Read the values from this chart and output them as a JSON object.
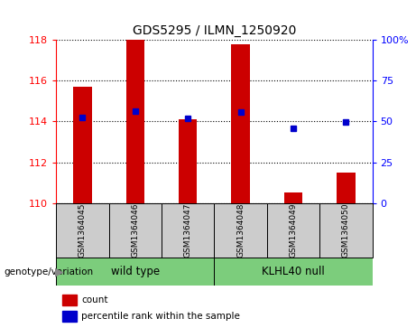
{
  "title": "GDS5295 / ILMN_1250920",
  "samples": [
    "GSM1364045",
    "GSM1364046",
    "GSM1364047",
    "GSM1364048",
    "GSM1364049",
    "GSM1364050"
  ],
  "group_names": [
    "wild type",
    "KLHL40 null"
  ],
  "group_ranges": [
    [
      0,
      3
    ],
    [
      3,
      6
    ]
  ],
  "bar_bottom": 110,
  "count_values": [
    115.7,
    118.0,
    114.1,
    117.75,
    110.55,
    111.5
  ],
  "percentile_values": [
    114.2,
    114.5,
    114.15,
    114.45,
    113.65,
    113.95
  ],
  "ylim": [
    110,
    118
  ],
  "y_ticks_left": [
    110,
    112,
    114,
    116,
    118
  ],
  "y_ticks_right": [
    0,
    25,
    50,
    75,
    100
  ],
  "ytick_right_labels": [
    "0",
    "25",
    "50",
    "75",
    "100%"
  ],
  "bar_color": "#CC0000",
  "dot_color": "#0000CC",
  "bar_width": 0.35,
  "sample_box_color": "#CCCCCC",
  "group_box_color": "#7CCD7C",
  "genotype_label": "genotype/variation",
  "legend_count": "count",
  "legend_percentile": "percentile rank within the sample"
}
